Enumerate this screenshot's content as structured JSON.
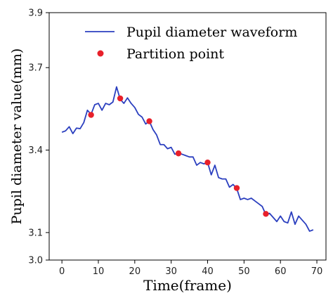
{
  "chart_data": {
    "type": "line",
    "title": "",
    "xlabel": "Time(frame)",
    "ylabel": "Pupil diameter value(mm)",
    "xlim": [
      -3.5,
      72.5
    ],
    "ylim": [
      3.0,
      3.9
    ],
    "x_ticks": [
      0,
      10,
      20,
      30,
      40,
      50,
      60,
      70
    ],
    "y_ticks": [
      3.0,
      3.1,
      3.4,
      3.7,
      3.9
    ],
    "y_tick_labels": [
      "3.0",
      "3.1",
      "3.4",
      "3.7",
      "3.9"
    ],
    "grid": false,
    "legend_position": "top-right",
    "legend": [
      {
        "label": "Pupil diameter waveform",
        "marker": "line",
        "color": "#2b3fbf"
      },
      {
        "label": "Partition point",
        "marker": "dot",
        "color": "#e8202a"
      }
    ],
    "series": [
      {
        "name": "Pupil diameter waveform",
        "color": "#2b3fbf",
        "x": [
          0,
          1,
          2,
          3,
          4,
          5,
          6,
          7,
          8,
          9,
          10,
          11,
          12,
          13,
          14,
          15,
          16,
          17,
          18,
          19,
          20,
          21,
          22,
          23,
          24,
          25,
          26,
          27,
          28,
          29,
          30,
          31,
          32,
          33,
          34,
          35,
          36,
          37,
          38,
          39,
          40,
          41,
          42,
          43,
          44,
          45,
          46,
          47,
          48,
          49,
          50,
          51,
          52,
          53,
          54,
          55,
          56,
          57,
          58,
          59,
          60,
          61,
          62,
          63,
          64,
          65,
          66,
          67,
          68,
          69
        ],
        "y": [
          3.465,
          3.47,
          3.485,
          3.46,
          3.48,
          3.478,
          3.5,
          3.545,
          3.53,
          3.565,
          3.57,
          3.545,
          3.57,
          3.565,
          3.575,
          3.63,
          3.585,
          3.57,
          3.59,
          3.57,
          3.555,
          3.53,
          3.52,
          3.495,
          3.505,
          3.475,
          3.455,
          3.42,
          3.42,
          3.405,
          3.41,
          3.385,
          3.39,
          3.385,
          3.38,
          3.375,
          3.375,
          3.345,
          3.355,
          3.35,
          3.355,
          3.31,
          3.345,
          3.3,
          3.295,
          3.295,
          3.265,
          3.275,
          3.26,
          3.22,
          3.225,
          3.22,
          3.225,
          3.215,
          3.205,
          3.195,
          3.165,
          3.17,
          3.155,
          3.14,
          3.16,
          3.14,
          3.135,
          3.175,
          3.13,
          3.16,
          3.145,
          3.13,
          3.105,
          3.11
        ]
      },
      {
        "name": "Partition point",
        "color": "#e8202a",
        "x": [
          8,
          16,
          24,
          32,
          40,
          48,
          56
        ],
        "y": [
          3.528,
          3.588,
          3.505,
          3.388,
          3.355,
          3.262,
          3.168
        ]
      }
    ]
  }
}
